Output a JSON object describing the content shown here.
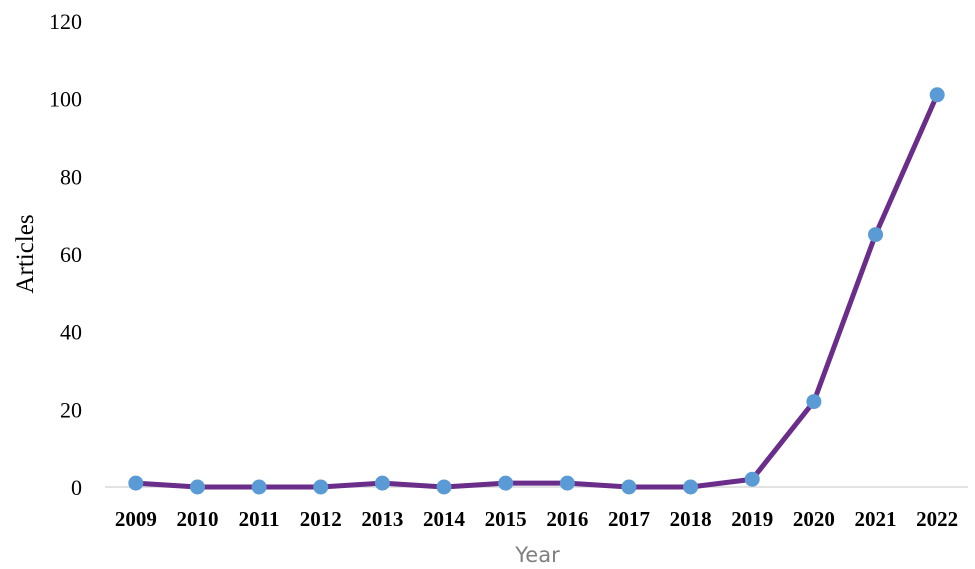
{
  "chart_data": {
    "type": "line",
    "title": "",
    "xlabel": "Year",
    "ylabel": "Articles",
    "ylim": [
      0,
      120
    ],
    "yticks": [
      0,
      20,
      40,
      60,
      80,
      100,
      120
    ],
    "grid": false,
    "legend": "none",
    "categories": [
      "2009",
      "2010",
      "2011",
      "2012",
      "2013",
      "2014",
      "2015",
      "2016",
      "2017",
      "2018",
      "2019",
      "2020",
      "2021",
      "2022"
    ],
    "series": [
      {
        "values": [
          1,
          0,
          0,
          0,
          1,
          0,
          1,
          1,
          0,
          0,
          2,
          22,
          65,
          101
        ],
        "line_color": "#6a2d8a",
        "marker_color": "#5b9bd5"
      }
    ]
  }
}
